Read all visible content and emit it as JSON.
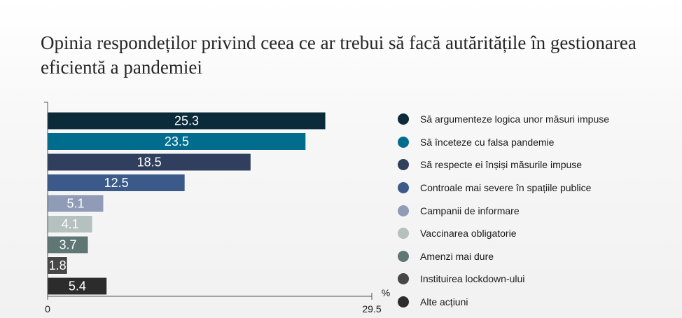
{
  "title": "Opinia respondeților privind ceea ce ar trebui să facă autăritățile în gestionarea eficientă a pandemiei",
  "chart_data": {
    "type": "bar",
    "orientation": "horizontal",
    "unit_label": "%",
    "xlim": [
      0,
      29.5
    ],
    "x_ticks": [
      "0",
      "29.5"
    ],
    "legend_position": "right",
    "grid": false,
    "categories": [
      "Să argumenteze logica unor măsuri impuse",
      "Să înceteze cu falsa pandemie",
      "Să respecte ei înșiși măsurile impuse",
      "Controale mai severe în spațiile publice",
      "Campanii de informare",
      "Vaccinarea obligatorie",
      "Amenzi mai dure",
      "Instituirea lockdown-ului",
      "Alte acțiuni"
    ],
    "values": [
      25.3,
      23.5,
      18.5,
      12.5,
      5.1,
      4.1,
      3.7,
      1.8,
      5.4
    ],
    "value_labels": [
      "25.3",
      "23.5",
      "18.5",
      "12.5",
      "5.1",
      "4.1",
      "3.7",
      "1.8",
      "5.4"
    ],
    "colors": [
      "#0b2a3a",
      "#006d8f",
      "#2f3f5d",
      "#3b5a8a",
      "#8f9bb7",
      "#b5c1be",
      "#5f7774",
      "#474747",
      "#2c2c2c"
    ]
  }
}
